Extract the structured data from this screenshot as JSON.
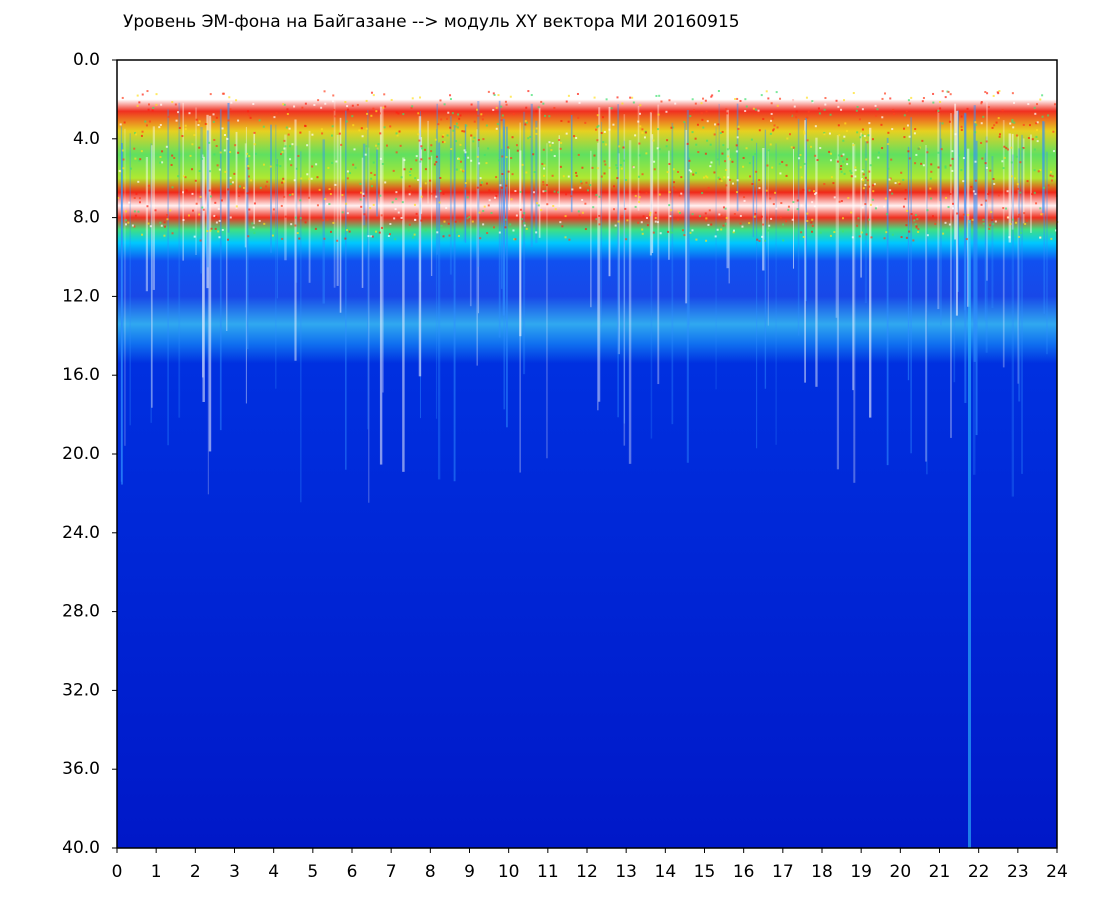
{
  "chart_data": {
    "type": "spectrogram",
    "title": "Уровень ЭМ-фона на Байгазане  -->  модуль XY вектора МИ  20160915",
    "xlim": [
      0,
      24
    ],
    "xticks": [
      0,
      1,
      2,
      3,
      4,
      5,
      6,
      7,
      8,
      9,
      10,
      11,
      12,
      13,
      14,
      15,
      16,
      17,
      18,
      19,
      20,
      21,
      22,
      23,
      24
    ],
    "ylim": [
      40,
      0
    ],
    "yticks": [
      {
        "value": 0,
        "label": "0.0"
      },
      {
        "value": 4,
        "label": "4.0"
      },
      {
        "value": 8,
        "label": "8.0"
      },
      {
        "value": 12,
        "label": "12.0"
      },
      {
        "value": 16,
        "label": "16.0"
      },
      {
        "value": 20,
        "label": "20.0"
      },
      {
        "value": 24,
        "label": "24.0"
      },
      {
        "value": 28,
        "label": "28.0"
      },
      {
        "value": 32,
        "label": "32.0"
      },
      {
        "value": 36,
        "label": "36.0"
      },
      {
        "value": 40,
        "label": "40.0"
      }
    ]
  }
}
